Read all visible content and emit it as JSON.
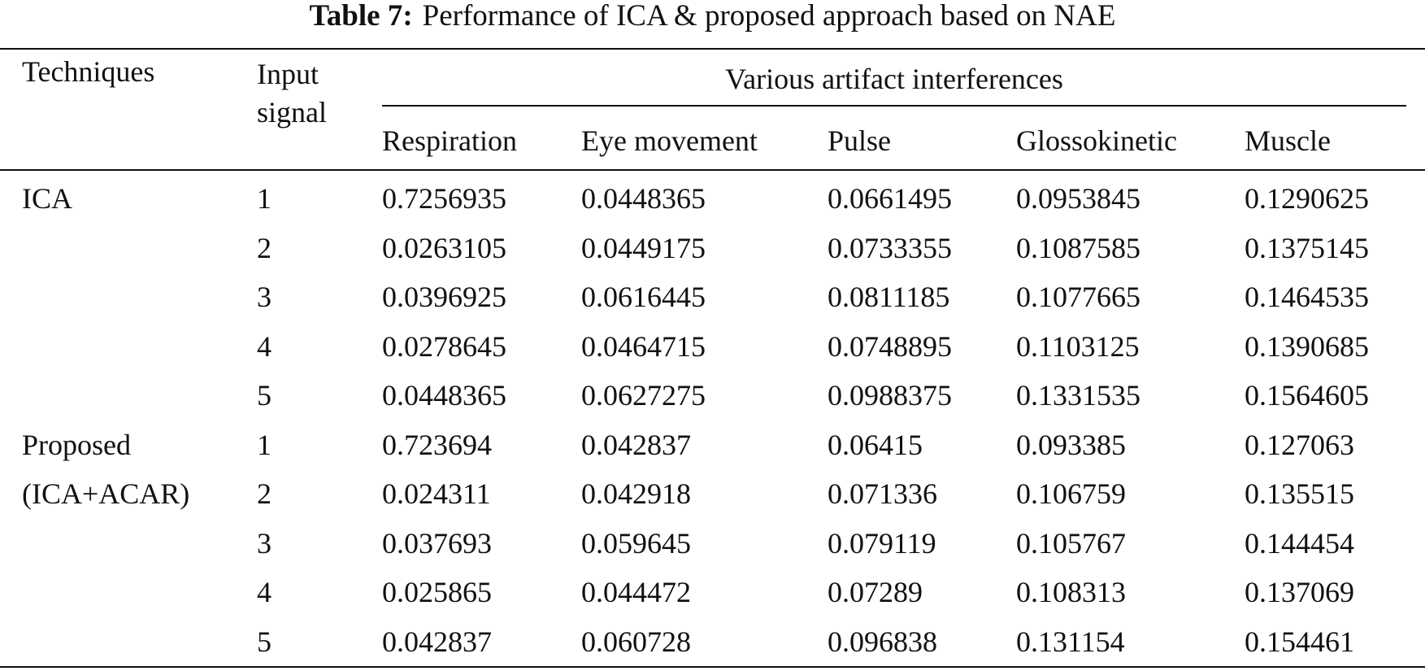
{
  "caption": {
    "label": "Table 7:",
    "text": "Performance of ICA & proposed approach based on NAE"
  },
  "header": {
    "techniques": "Techniques",
    "input_signal_line1": "Input",
    "input_signal_line2": "signal",
    "group_label": "Various artifact interferences",
    "columns": [
      "Respiration",
      "Eye movement",
      "Pulse",
      "Glossokinetic",
      "Muscle"
    ]
  },
  "groups": [
    {
      "technique_line1": "ICA",
      "technique_line2": "",
      "rows": [
        {
          "input": "1",
          "values": [
            "0.7256935",
            "0.0448365",
            "0.0661495",
            "0.0953845",
            "0.1290625"
          ]
        },
        {
          "input": "2",
          "values": [
            "0.0263105",
            "0.0449175",
            "0.0733355",
            "0.1087585",
            "0.1375145"
          ]
        },
        {
          "input": "3",
          "values": [
            "0.0396925",
            "0.0616445",
            "0.0811185",
            "0.1077665",
            "0.1464535"
          ]
        },
        {
          "input": "4",
          "values": [
            "0.0278645",
            "0.0464715",
            "0.0748895",
            "0.1103125",
            "0.1390685"
          ]
        },
        {
          "input": "5",
          "values": [
            "0.0448365",
            "0.0627275",
            "0.0988375",
            "0.1331535",
            "0.1564605"
          ]
        }
      ]
    },
    {
      "technique_line1": "Proposed",
      "technique_line2": "(ICA+ACAR)",
      "rows": [
        {
          "input": "1",
          "values": [
            "0.723694",
            "0.042837",
            "0.06415",
            "0.093385",
            "0.127063"
          ]
        },
        {
          "input": "2",
          "values": [
            "0.024311",
            "0.042918",
            "0.071336",
            "0.106759",
            "0.135515"
          ]
        },
        {
          "input": "3",
          "values": [
            "0.037693",
            "0.059645",
            "0.079119",
            "0.105767",
            "0.144454"
          ]
        },
        {
          "input": "4",
          "values": [
            "0.025865",
            "0.044472",
            "0.07289",
            "0.108313",
            "0.137069"
          ]
        },
        {
          "input": "5",
          "values": [
            "0.042837",
            "0.060728",
            "0.096838",
            "0.131154",
            "0.154461"
          ]
        }
      ]
    }
  ]
}
